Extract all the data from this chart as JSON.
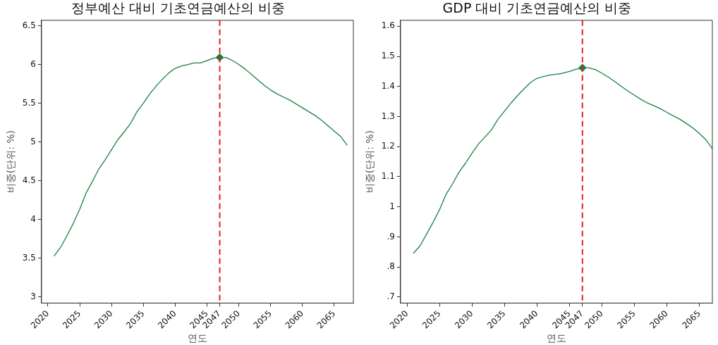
{
  "chart_data": [
    {
      "type": "line",
      "title": "정부예산 대비 기초연금예산의 비중",
      "xlabel": "연도",
      "ylabel": "비중(단위: %)",
      "x": [
        2021,
        2022,
        2023,
        2024,
        2025,
        2026,
        2027,
        2028,
        2029,
        2030,
        2031,
        2032,
        2033,
        2034,
        2035,
        2036,
        2037,
        2038,
        2039,
        2040,
        2041,
        2042,
        2043,
        2044,
        2045,
        2046,
        2047,
        2048,
        2049,
        2050,
        2051,
        2052,
        2053,
        2054,
        2055,
        2056,
        2057,
        2058,
        2059,
        2060,
        2061,
        2062,
        2063,
        2064,
        2065,
        2066,
        2067
      ],
      "series": [
        {
          "type": "line",
          "color": "#1a8040",
          "values": [
            3.53,
            3.64,
            3.79,
            3.95,
            4.13,
            4.34,
            4.49,
            4.65,
            4.77,
            4.9,
            5.03,
            5.13,
            5.24,
            5.39,
            5.5,
            5.62,
            5.72,
            5.81,
            5.89,
            5.95,
            5.98,
            6.0,
            6.02,
            6.02,
            6.05,
            6.08,
            6.09,
            6.09,
            6.05,
            6.0,
            5.94,
            5.87,
            5.8,
            5.73,
            5.67,
            5.62,
            5.58,
            5.54,
            5.49,
            5.44,
            5.39,
            5.34,
            5.28,
            5.21,
            5.14,
            5.07,
            4.96
          ]
        },
        {
          "type": "scatter",
          "color": "#1a8040",
          "marker": "diamond",
          "x": [
            2047
          ],
          "values": [
            6.09
          ]
        }
      ],
      "xlim": [
        2019,
        2068
      ],
      "xticks": [
        2020,
        2025,
        2030,
        2035,
        2040,
        2045,
        2047,
        2050,
        2055,
        2060,
        2065
      ],
      "ylim": [
        2.92,
        6.57
      ],
      "yticks": [
        3,
        3.5,
        4,
        4.5,
        5,
        5.5,
        6,
        6.5
      ],
      "ref_lines": [
        {
          "axis": "x",
          "value": 2047,
          "color": "#e8201e",
          "line_style": "dashed"
        }
      ],
      "grid": false
    },
    {
      "type": "line",
      "title": "GDP 대비 기초연금예산의 비중",
      "xlabel": "연도",
      "ylabel": "비중(단위: %)",
      "x": [
        2021,
        2022,
        2023,
        2024,
        2025,
        2026,
        2027,
        2028,
        2029,
        2030,
        2031,
        2032,
        2033,
        2034,
        2035,
        2036,
        2037,
        2038,
        2039,
        2040,
        2041,
        2042,
        2043,
        2044,
        2045,
        2046,
        2047,
        2048,
        2049,
        2050,
        2051,
        2052,
        2053,
        2054,
        2055,
        2056,
        2057,
        2058,
        2059,
        2060,
        2061,
        2062,
        2063,
        2064,
        2065,
        2066,
        2067
      ],
      "series": [
        {
          "type": "line",
          "color": "#1a8040",
          "values": [
            0.846,
            0.87,
            0.909,
            0.948,
            0.99,
            1.041,
            1.076,
            1.115,
            1.145,
            1.178,
            1.209,
            1.232,
            1.256,
            1.291,
            1.318,
            1.345,
            1.369,
            1.392,
            1.413,
            1.427,
            1.433,
            1.438,
            1.441,
            1.444,
            1.45,
            1.457,
            1.462,
            1.462,
            1.456,
            1.444,
            1.431,
            1.416,
            1.4,
            1.385,
            1.371,
            1.357,
            1.345,
            1.336,
            1.326,
            1.314,
            1.302,
            1.291,
            1.277,
            1.262,
            1.244,
            1.223,
            1.193
          ]
        },
        {
          "type": "scatter",
          "color": "#1a8040",
          "marker": "diamond",
          "x": [
            2047
          ],
          "values": [
            1.462
          ]
        }
      ],
      "xlim": [
        2019,
        2067
      ],
      "xticks": [
        2020,
        2025,
        2030,
        2035,
        2040,
        2045,
        2047,
        2050,
        2055,
        2060,
        2065
      ],
      "ylim": [
        0.68,
        1.62
      ],
      "yticks": [
        {
          "value": 0.7,
          "label": ".7"
        },
        {
          "value": 0.8,
          "label": ".8"
        },
        {
          "value": 0.9,
          "label": ".9"
        },
        1,
        1.1,
        1.2,
        1.3,
        1.4,
        1.5,
        1.6
      ],
      "ref_lines": [
        {
          "axis": "x",
          "value": 2047,
          "color": "#e8201e",
          "line_style": "dashed"
        }
      ],
      "grid": false
    }
  ]
}
